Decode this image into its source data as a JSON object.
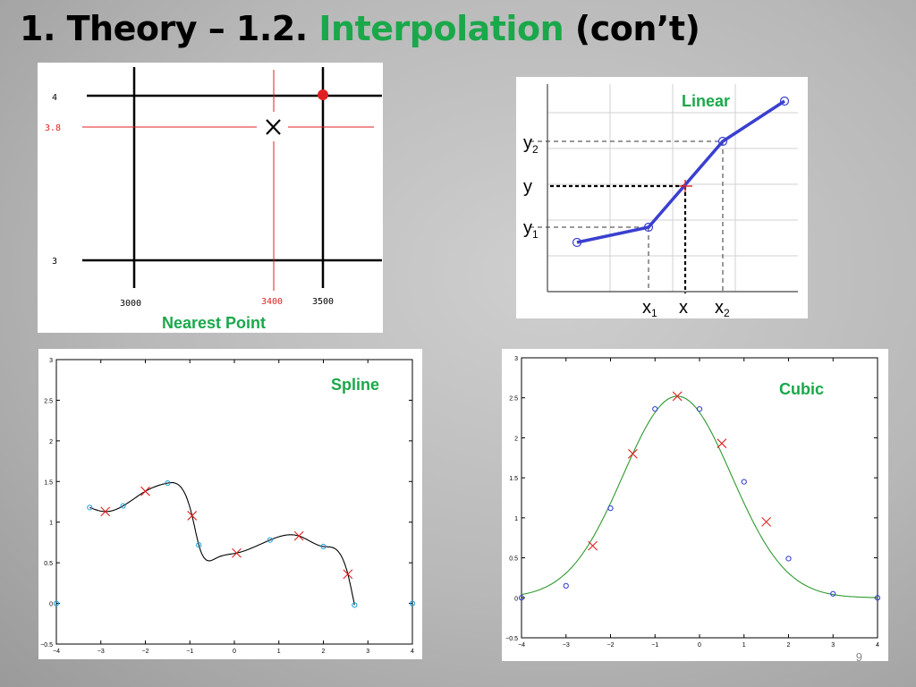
{
  "title": {
    "prefix": "1. Theory – 1.2. ",
    "highlight": "Interpolation",
    "suffix": " (con’t)"
  },
  "slide_number": "9",
  "colors": {
    "accent": "#1aa84a",
    "red": "#e02020",
    "blue": "#3a3fd0",
    "green_curve": "#2e9a2e"
  },
  "nearest": {
    "label": "Nearest Point",
    "y_ticks": [
      "4",
      "3.8",
      "3"
    ],
    "x_ticks": [
      "3000",
      "3400",
      "3500"
    ]
  },
  "linear": {
    "label": "Linear",
    "y_labels": {
      "y2": "y",
      "y2_sub": "2",
      "y": "y",
      "y1": "y",
      "y1_sub": "1"
    },
    "x_labels": {
      "x1": "x",
      "x1_sub": "1",
      "x": "x",
      "x2": "x",
      "x2_sub": "2"
    }
  },
  "chart_data": [
    {
      "type": "line",
      "title": "Spline",
      "xlim": [
        -4,
        4
      ],
      "ylim": [
        -0.5,
        3
      ],
      "x_ticks": [
        "−4",
        "−3",
        "−2",
        "−1",
        "0",
        "1",
        "2",
        "3",
        "4"
      ],
      "y_ticks": [
        "−0.5",
        "0",
        "0.5",
        "1",
        "1.5",
        "2",
        "2.5",
        "3"
      ],
      "series": [
        {
          "x": [
            -4,
            -3.25,
            -2.5,
            -1.5,
            -0.8,
            0.8,
            2.0,
            2.7,
            4
          ],
          "y": [
            0,
            1.18,
            1.2,
            1.48,
            0.72,
            0.78,
            0.7,
            -0.02,
            0
          ]
        },
        {
          "x": [
            -2.9,
            -2.0,
            -0.95,
            0.05,
            1.45,
            2.55
          ],
          "y": [
            1.13,
            1.38,
            1.08,
            0.62,
            0.83,
            0.36
          ]
        },
        {
          "x": [
            -3.25,
            -2.9,
            -2.5,
            -2.0,
            -1.5,
            -0.95,
            -0.8,
            -0.4,
            0.05,
            0.8,
            1.45,
            2.0,
            2.55,
            2.7
          ],
          "y": [
            1.18,
            1.13,
            1.2,
            1.38,
            1.48,
            1.08,
            0.72,
            0.56,
            0.62,
            0.78,
            0.83,
            0.7,
            0.36,
            -0.02
          ]
        }
      ]
    },
    {
      "type": "line",
      "title": "Cubic",
      "xlim": [
        -4,
        4
      ],
      "ylim": [
        -0.5,
        3
      ],
      "x_ticks": [
        "−4",
        "−3",
        "−2",
        "−1",
        "0",
        "1",
        "2",
        "3",
        "4"
      ],
      "y_ticks": [
        "−0.5",
        "0",
        "0.5",
        "1",
        "1.5",
        "2",
        "2.5",
        "3"
      ],
      "series": [
        {
          "x": [
            -4,
            -3,
            -2,
            -1,
            0,
            1,
            2,
            3,
            4
          ],
          "y": [
            0,
            0.15,
            1.12,
            2.36,
            2.36,
            1.45,
            0.49,
            0.05,
            0
          ]
        },
        {
          "x": [
            -2.4,
            -1.5,
            -0.5,
            0.5,
            1.5
          ],
          "y": [
            0.65,
            1.8,
            2.52,
            1.93,
            0.95
          ]
        },
        {
          "mu": -0.5,
          "sigma": 1.22,
          "amplitude": 2.52
        }
      ]
    }
  ]
}
